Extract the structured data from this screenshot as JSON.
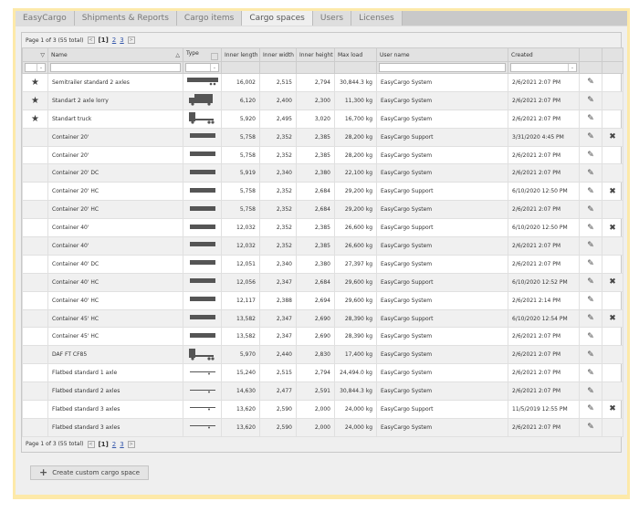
{
  "tabs": [
    {
      "label": "EasyCargo"
    },
    {
      "label": "Shipments & Reports"
    },
    {
      "label": "Cargo items"
    },
    {
      "label": "Cargo spaces",
      "active": true
    },
    {
      "label": "Users"
    },
    {
      "label": "Licenses"
    }
  ],
  "pager": {
    "text": "Page 1 of 3 (55 total)",
    "prev": "<",
    "current": "[1]",
    "pages": [
      "2",
      "3"
    ],
    "next": ">"
  },
  "columns": {
    "sort": "▽",
    "name": "Name",
    "name_sort": "△",
    "type": "Type",
    "inner_length": "Inner length",
    "inner_width": "Inner width",
    "inner_height": "Inner height",
    "max_load": "Max load",
    "user_name": "User name",
    "created": "Created"
  },
  "icons": {
    "favorite": "star-icon",
    "edit": "pencil-icon",
    "delete": "close-icon",
    "create": "plus-icon"
  },
  "rows": [
    {
      "fav": true,
      "name": "Semitrailer standard 2 axles",
      "type": "semitrailer",
      "len": "16,002",
      "wid": "2,515",
      "hei": "2,794",
      "load": "30,844.3 kg",
      "user": "EasyCargo System",
      "created": "2/6/2021 2:07 PM",
      "del": false
    },
    {
      "fav": true,
      "name": "Standart 2 axle lorry",
      "type": "lorry",
      "len": "6,120",
      "wid": "2,400",
      "hei": "2,300",
      "load": "11,300 kg",
      "user": "EasyCargo System",
      "created": "2/6/2021 2:07 PM",
      "del": false
    },
    {
      "fav": true,
      "name": "Standart truck",
      "type": "truck",
      "len": "5,920",
      "wid": "2,495",
      "hei": "3,020",
      "load": "16,700 kg",
      "user": "EasyCargo System",
      "created": "2/6/2021 2:07 PM",
      "del": false
    },
    {
      "fav": false,
      "name": "Container 20'",
      "type": "container",
      "len": "5,758",
      "wid": "2,352",
      "hei": "2,385",
      "load": "28,200 kg",
      "user": "EasyCargo Support",
      "created": "3/31/2020 4:45 PM",
      "del": true
    },
    {
      "fav": false,
      "name": "Container 20'",
      "type": "container",
      "len": "5,758",
      "wid": "2,352",
      "hei": "2,385",
      "load": "28,200 kg",
      "user": "EasyCargo System",
      "created": "2/6/2021 2:07 PM",
      "del": false
    },
    {
      "fav": false,
      "name": "Container 20' DC",
      "type": "container",
      "len": "5,919",
      "wid": "2,340",
      "hei": "2,380",
      "load": "22,100 kg",
      "user": "EasyCargo System",
      "created": "2/6/2021 2:07 PM",
      "del": false
    },
    {
      "fav": false,
      "name": "Container 20' HC",
      "type": "container",
      "len": "5,758",
      "wid": "2,352",
      "hei": "2,684",
      "load": "29,200 kg",
      "user": "EasyCargo Support",
      "created": "6/10/2020 12:50 PM",
      "del": true
    },
    {
      "fav": false,
      "name": "Container 20' HC",
      "type": "container",
      "len": "5,758",
      "wid": "2,352",
      "hei": "2,684",
      "load": "29,200 kg",
      "user": "EasyCargo System",
      "created": "2/6/2021 2:07 PM",
      "del": false
    },
    {
      "fav": false,
      "name": "Container 40'",
      "type": "container",
      "len": "12,032",
      "wid": "2,352",
      "hei": "2,385",
      "load": "26,600 kg",
      "user": "EasyCargo Support",
      "created": "6/10/2020 12:50 PM",
      "del": true
    },
    {
      "fav": false,
      "name": "Container 40'",
      "type": "container",
      "len": "12,032",
      "wid": "2,352",
      "hei": "2,385",
      "load": "26,600 kg",
      "user": "EasyCargo System",
      "created": "2/6/2021 2:07 PM",
      "del": false
    },
    {
      "fav": false,
      "name": "Container 40' DC",
      "type": "container",
      "len": "12,051",
      "wid": "2,340",
      "hei": "2,380",
      "load": "27,397 kg",
      "user": "EasyCargo System",
      "created": "2/6/2021 2:07 PM",
      "del": false
    },
    {
      "fav": false,
      "name": "Container 40' HC",
      "type": "container",
      "len": "12,056",
      "wid": "2,347",
      "hei": "2,684",
      "load": "29,600 kg",
      "user": "EasyCargo Support",
      "created": "6/10/2020 12:52 PM",
      "del": true
    },
    {
      "fav": false,
      "name": "Container 40' HC",
      "type": "container",
      "len": "12,117",
      "wid": "2,388",
      "hei": "2,694",
      "load": "29,600 kg",
      "user": "EasyCargo System",
      "created": "2/6/2021 2:14 PM",
      "del": false
    },
    {
      "fav": false,
      "name": "Container 45' HC",
      "type": "container",
      "len": "13,582",
      "wid": "2,347",
      "hei": "2,690",
      "load": "28,390 kg",
      "user": "EasyCargo Support",
      "created": "6/10/2020 12:54 PM",
      "del": true
    },
    {
      "fav": false,
      "name": "Container 45' HC",
      "type": "container",
      "len": "13,582",
      "wid": "2,347",
      "hei": "2,690",
      "load": "28,390 kg",
      "user": "EasyCargo System",
      "created": "2/6/2021 2:07 PM",
      "del": false
    },
    {
      "fav": false,
      "name": "DAF FT CF85",
      "type": "truck",
      "len": "5,970",
      "wid": "2,440",
      "hei": "2,830",
      "load": "17,400 kg",
      "user": "EasyCargo System",
      "created": "2/6/2021 2:07 PM",
      "del": false
    },
    {
      "fav": false,
      "name": "Flatbed standard 1 axle",
      "type": "flatbed",
      "len": "15,240",
      "wid": "2,515",
      "hei": "2,794",
      "load": "24,494.0 kg",
      "user": "EasyCargo System",
      "created": "2/6/2021 2:07 PM",
      "del": false
    },
    {
      "fav": false,
      "name": "Flatbed standard 2 axles",
      "type": "flatbed",
      "len": "14,630",
      "wid": "2,477",
      "hei": "2,591",
      "load": "30,844.3 kg",
      "user": "EasyCargo System",
      "created": "2/6/2021 2:07 PM",
      "del": false
    },
    {
      "fav": false,
      "name": "Flatbed standard 3 axles",
      "type": "flatbed",
      "len": "13,620",
      "wid": "2,590",
      "hei": "2,000",
      "load": "24,000 kg",
      "user": "EasyCargo Support",
      "created": "11/5/2019 12:55 PM",
      "del": true
    },
    {
      "fav": false,
      "name": "Flatbed standard 3 axles",
      "type": "flatbed",
      "len": "13,620",
      "wid": "2,590",
      "hei": "2,000",
      "load": "24,000 kg",
      "user": "EasyCargo System",
      "created": "2/6/2021 2:07 PM",
      "del": false
    }
  ],
  "create_button": {
    "label": "Create custom cargo space"
  }
}
